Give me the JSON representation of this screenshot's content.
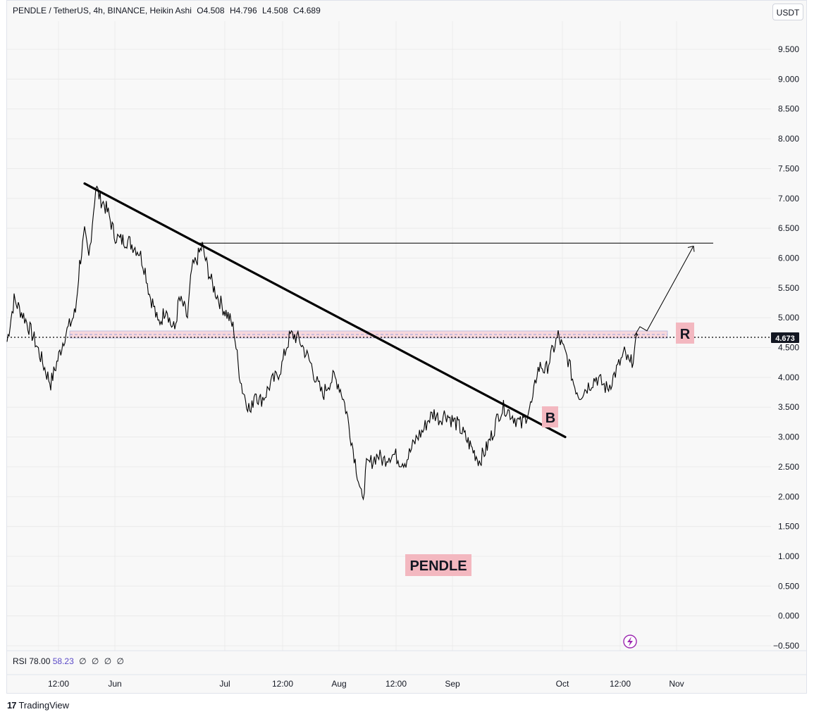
{
  "header": {
    "symbol": "PENDLE / TetherUS, 4h, BINANCE, Heikin Ashi",
    "open": "O4.508",
    "high": "H4.796",
    "low": "L4.508",
    "close": "C4.689",
    "currency_button": "USDT"
  },
  "rsi": {
    "label": "RSI",
    "value1": "78.00",
    "value2": "58.23",
    "extras": [
      "∅",
      "∅",
      "∅",
      "∅"
    ]
  },
  "brand": {
    "name": "TradingView",
    "logo_text": "17"
  },
  "colors": {
    "price_line": "#000000",
    "zone_fill": "#f8cfd4",
    "zone_border": "#9aa0d8",
    "label_bg": "#f3b8c0",
    "last_price_bg": "#131722",
    "flash_icon": "#9c27b0"
  },
  "chart_data": {
    "type": "line",
    "series_name": "",
    "y_axis": {
      "ticks": [
        "9.500",
        "9.000",
        "8.500",
        "8.000",
        "7.500",
        "7.000",
        "6.500",
        "6.000",
        "5.500",
        "5.000",
        "4.500",
        "4.000",
        "3.500",
        "3.000",
        "2.500",
        "2.000",
        "1.500",
        "1.000",
        "0.500",
        "0.000",
        "−0.500"
      ],
      "range": [
        -0.5,
        9.5
      ]
    },
    "x_axis": {
      "ticks": [
        "12:00",
        "Jun",
        "Jul",
        "12:00",
        "Aug",
        "12:00",
        "Sep",
        "Oct",
        "12:00",
        "Nov"
      ]
    },
    "approx_price_path": [
      [
        0,
        4.6
      ],
      [
        10,
        5.3
      ],
      [
        25,
        5.0
      ],
      [
        40,
        4.6
      ],
      [
        55,
        4.1
      ],
      [
        62,
        3.9
      ],
      [
        72,
        4.3
      ],
      [
        82,
        4.7
      ],
      [
        90,
        4.9
      ],
      [
        97,
        5.1
      ],
      [
        103,
        5.9
      ],
      [
        110,
        6.4
      ],
      [
        116,
        6.0
      ],
      [
        121,
        6.6
      ],
      [
        126,
        7.2
      ],
      [
        132,
        7.0
      ],
      [
        138,
        6.9
      ],
      [
        145,
        6.7
      ],
      [
        152,
        6.4
      ],
      [
        160,
        6.3
      ],
      [
        170,
        6.3
      ],
      [
        180,
        6.2
      ],
      [
        188,
        6.1
      ],
      [
        196,
        5.8
      ],
      [
        202,
        5.4
      ],
      [
        208,
        5.2
      ],
      [
        214,
        4.9
      ],
      [
        220,
        5.0
      ],
      [
        226,
        5.2
      ],
      [
        232,
        4.9
      ],
      [
        238,
        4.8
      ],
      [
        244,
        5.3
      ],
      [
        250,
        5.2
      ],
      [
        256,
        5.0
      ],
      [
        262,
        5.8
      ],
      [
        270,
        6.0
      ],
      [
        277,
        6.2
      ],
      [
        283,
        5.9
      ],
      [
        290,
        5.6
      ],
      [
        297,
        5.4
      ],
      [
        305,
        5.2
      ],
      [
        315,
        5.0
      ],
      [
        322,
        4.8
      ],
      [
        328,
        4.2
      ],
      [
        334,
        3.8
      ],
      [
        340,
        3.6
      ],
      [
        346,
        3.4
      ],
      [
        352,
        3.8
      ],
      [
        358,
        3.6
      ],
      [
        366,
        3.7
      ],
      [
        374,
        3.9
      ],
      [
        382,
        4.0
      ],
      [
        390,
        4.2
      ],
      [
        396,
        4.5
      ],
      [
        402,
        4.7
      ],
      [
        408,
        4.7
      ],
      [
        416,
        4.6
      ],
      [
        424,
        4.4
      ],
      [
        432,
        4.2
      ],
      [
        440,
        3.9
      ],
      [
        448,
        3.7
      ],
      [
        456,
        3.9
      ],
      [
        464,
        4.0
      ],
      [
        470,
        3.9
      ],
      [
        476,
        3.7
      ],
      [
        482,
        3.4
      ],
      [
        488,
        3.0
      ],
      [
        494,
        2.6
      ],
      [
        500,
        2.2
      ],
      [
        504,
        1.9
      ],
      [
        510,
        2.5
      ],
      [
        518,
        2.6
      ],
      [
        526,
        2.7
      ],
      [
        534,
        2.6
      ],
      [
        542,
        2.7
      ],
      [
        550,
        2.7
      ],
      [
        558,
        2.6
      ],
      [
        566,
        2.6
      ],
      [
        574,
        2.8
      ],
      [
        582,
        3.0
      ],
      [
        590,
        3.1
      ],
      [
        598,
        3.3
      ],
      [
        606,
        3.4
      ],
      [
        614,
        3.3
      ],
      [
        622,
        3.4
      ],
      [
        630,
        3.3
      ],
      [
        640,
        3.2
      ],
      [
        650,
        3.0
      ],
      [
        660,
        2.8
      ],
      [
        670,
        2.6
      ],
      [
        680,
        2.8
      ],
      [
        690,
        3.1
      ],
      [
        698,
        3.4
      ],
      [
        706,
        3.5
      ],
      [
        714,
        3.4
      ],
      [
        722,
        3.3
      ],
      [
        730,
        3.2
      ],
      [
        738,
        3.4
      ],
      [
        746,
        3.6
      ],
      [
        752,
        4.1
      ],
      [
        758,
        4.2
      ],
      [
        764,
        4.1
      ],
      [
        770,
        4.3
      ],
      [
        776,
        4.5
      ],
      [
        782,
        4.7
      ],
      [
        788,
        4.5
      ],
      [
        796,
        4.3
      ],
      [
        804,
        3.9
      ],
      [
        812,
        3.7
      ],
      [
        820,
        3.8
      ],
      [
        828,
        3.9
      ],
      [
        836,
        4.0
      ],
      [
        844,
        3.9
      ],
      [
        852,
        3.8
      ],
      [
        860,
        4.0
      ],
      [
        868,
        4.2
      ],
      [
        876,
        4.4
      ],
      [
        884,
        4.2
      ],
      [
        890,
        4.4
      ],
      [
        895,
        4.7
      ]
    ],
    "annotations": {
      "trendline": {
        "from": [
          120,
          7.25
        ],
        "to": [
          802,
          3.0
        ]
      },
      "horizontal_target": {
        "price": 6.25
      },
      "resistance_zone": {
        "low": 4.67,
        "high": 4.78
      },
      "projection_arrow": [
        [
          900,
          4.69
        ],
        [
          908,
          4.85
        ],
        [
          918,
          4.78
        ],
        [
          984,
          6.2
        ]
      ],
      "last_price": "4.673",
      "labels": {
        "R": "R",
        "B": "B",
        "symbol": "PENDLE"
      }
    }
  }
}
